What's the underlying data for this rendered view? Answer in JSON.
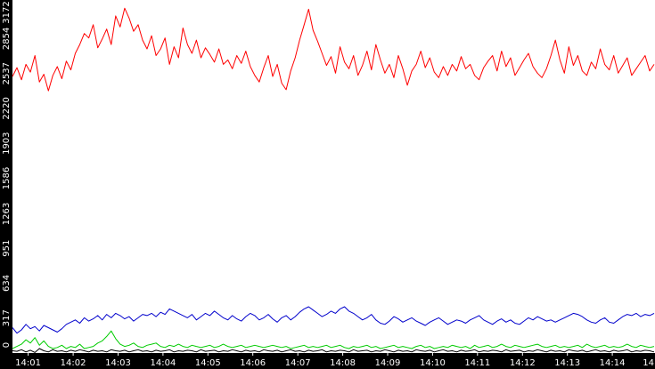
{
  "chart_data": {
    "type": "line",
    "title": "",
    "xlabel": "",
    "ylabel": "",
    "ylim": [
      0,
      3172
    ],
    "y_ticks": [
      0,
      317,
      634,
      951,
      1263,
      1586,
      1903,
      2220,
      2537,
      2854,
      3172
    ],
    "x_ticks": [
      "14:01",
      "14:02",
      "14:03",
      "14:04",
      "14:05",
      "14:06",
      "14:07",
      "14:08",
      "14:09",
      "14:10",
      "14:11",
      "14:12",
      "14:13",
      "14:14",
      "14"
    ],
    "x_start_minute": 0.65,
    "x_end_minute": 14.95,
    "grid": false,
    "legend": "none",
    "series": [
      {
        "color": "#ff0000",
        "values": [
          2510,
          2590,
          2480,
          2620,
          2550,
          2700,
          2460,
          2530,
          2380,
          2520,
          2600,
          2490,
          2650,
          2570,
          2720,
          2800,
          2900,
          2860,
          2980,
          2770,
          2850,
          2940,
          2800,
          3060,
          2960,
          3130,
          3040,
          2920,
          2980,
          2840,
          2760,
          2880,
          2700,
          2760,
          2860,
          2620,
          2780,
          2680,
          2950,
          2800,
          2720,
          2840,
          2680,
          2770,
          2710,
          2640,
          2760,
          2620,
          2660,
          2580,
          2700,
          2630,
          2740,
          2600,
          2520,
          2460,
          2590,
          2700,
          2510,
          2620,
          2450,
          2390,
          2560,
          2680,
          2840,
          2980,
          3120,
          2930,
          2830,
          2720,
          2610,
          2690,
          2540,
          2780,
          2640,
          2580,
          2700,
          2520,
          2610,
          2740,
          2570,
          2800,
          2660,
          2540,
          2620,
          2500,
          2700,
          2580,
          2430,
          2560,
          2620,
          2740,
          2590,
          2680,
          2550,
          2500,
          2600,
          2520,
          2620,
          2560,
          2690,
          2580,
          2620,
          2520,
          2480,
          2590,
          2650,
          2700,
          2560,
          2740,
          2600,
          2680,
          2520,
          2590,
          2660,
          2720,
          2600,
          2540,
          2500,
          2580,
          2700,
          2840,
          2660,
          2540,
          2780,
          2610,
          2700,
          2560,
          2520,
          2640,
          2580,
          2760,
          2620,
          2570,
          2700,
          2540,
          2610,
          2680,
          2520,
          2580,
          2640,
          2700,
          2560,
          2620
        ]
      },
      {
        "color": "#0000cc",
        "values": [
          230,
          180,
          210,
          260,
          220,
          240,
          200,
          250,
          230,
          210,
          190,
          220,
          260,
          280,
          300,
          270,
          320,
          290,
          310,
          340,
          300,
          350,
          320,
          360,
          340,
          310,
          330,
          290,
          320,
          350,
          340,
          360,
          330,
          370,
          350,
          400,
          380,
          360,
          340,
          320,
          350,
          300,
          330,
          360,
          340,
          380,
          350,
          320,
          300,
          340,
          310,
          290,
          330,
          360,
          340,
          300,
          320,
          350,
          310,
          280,
          320,
          340,
          300,
          330,
          370,
          400,
          420,
          390,
          360,
          330,
          350,
          380,
          360,
          400,
          420,
          380,
          360,
          330,
          300,
          320,
          350,
          300,
          270,
          260,
          290,
          330,
          310,
          280,
          300,
          320,
          290,
          270,
          250,
          280,
          300,
          320,
          290,
          260,
          280,
          300,
          290,
          270,
          300,
          320,
          340,
          300,
          280,
          260,
          290,
          310,
          280,
          300,
          270,
          260,
          290,
          320,
          300,
          330,
          310,
          290,
          300,
          280,
          300,
          320,
          340,
          360,
          350,
          330,
          300,
          280,
          270,
          300,
          320,
          280,
          270,
          300,
          330,
          350,
          340,
          360,
          330,
          350,
          340,
          360
        ]
      },
      {
        "color": "#00cc00",
        "values": [
          40,
          60,
          80,
          120,
          90,
          140,
          70,
          110,
          60,
          40,
          50,
          70,
          40,
          60,
          50,
          80,
          40,
          50,
          60,
          90,
          110,
          150,
          200,
          130,
          80,
          60,
          70,
          90,
          60,
          50,
          70,
          80,
          90,
          60,
          50,
          70,
          60,
          80,
          60,
          50,
          70,
          60,
          50,
          60,
          70,
          50,
          60,
          80,
          60,
          50,
          60,
          70,
          50,
          60,
          70,
          60,
          50,
          60,
          70,
          60,
          50,
          60,
          40,
          50,
          60,
          70,
          50,
          60,
          50,
          60,
          70,
          50,
          60,
          70,
          50,
          40,
          60,
          50,
          60,
          70,
          50,
          60,
          40,
          50,
          60,
          70,
          50,
          60,
          50,
          40,
          60,
          70,
          50,
          60,
          40,
          50,
          60,
          50,
          70,
          60,
          50,
          60,
          40,
          70,
          50,
          60,
          70,
          50,
          60,
          80,
          60,
          50,
          70,
          60,
          50,
          60,
          70,
          80,
          60,
          50,
          60,
          70,
          50,
          60,
          50,
          60,
          70,
          50,
          80,
          60,
          50,
          60,
          70,
          50,
          60,
          50,
          60,
          80,
          60,
          50,
          70,
          60,
          50,
          60
        ]
      },
      {
        "color": "#000000",
        "values": [
          20,
          15,
          30,
          10,
          25,
          5,
          40,
          20,
          10,
          30,
          15,
          20,
          10,
          25,
          15,
          30,
          20,
          10,
          25,
          15,
          20,
          10,
          30,
          20,
          15,
          25,
          10,
          20,
          30,
          15,
          20,
          10,
          25,
          15,
          20,
          30,
          10,
          20,
          15,
          25,
          20,
          10,
          30,
          15,
          20,
          25,
          10,
          20,
          15,
          30,
          20,
          10,
          25,
          15,
          20,
          10,
          30,
          20,
          15,
          25,
          10,
          20,
          30,
          15,
          20,
          10,
          25,
          15,
          20,
          30,
          10,
          20,
          15,
          25,
          20,
          10,
          30,
          15,
          20,
          25,
          10,
          20,
          15,
          30,
          20,
          10,
          25,
          15,
          20,
          10,
          30,
          20,
          15,
          25,
          10,
          20,
          30,
          15,
          20,
          10,
          25,
          15,
          20,
          30,
          10,
          20,
          15,
          25,
          20,
          10,
          30,
          15,
          20,
          25,
          10,
          20,
          15,
          30,
          20,
          10,
          25,
          15,
          20,
          10,
          30,
          20,
          15,
          25,
          10,
          20,
          30,
          15,
          20,
          10,
          25,
          15,
          20,
          30,
          10,
          20,
          15,
          25,
          20,
          10
        ]
      }
    ]
  }
}
